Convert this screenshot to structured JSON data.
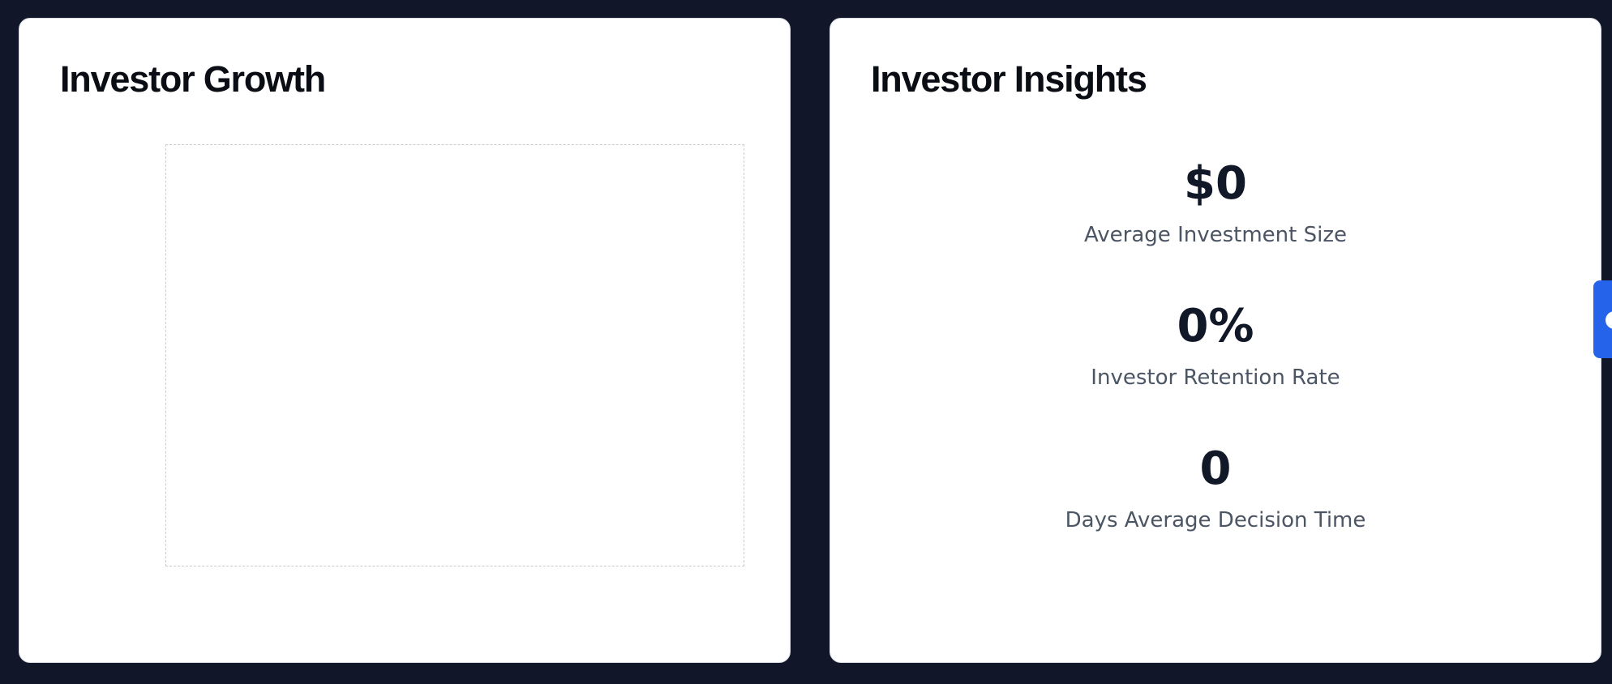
{
  "growth_card": {
    "title": "Investor Growth"
  },
  "insights_card": {
    "title": "Investor Insights",
    "metrics": [
      {
        "value": "$0",
        "label": "Average Investment Size"
      },
      {
        "value": "0%",
        "label": "Investor Retention Rate"
      },
      {
        "value": "0",
        "label": "Days Average Decision Time"
      }
    ]
  },
  "side_tab": {
    "icon": "chat-bubble-icon",
    "color": "#2563eb"
  }
}
